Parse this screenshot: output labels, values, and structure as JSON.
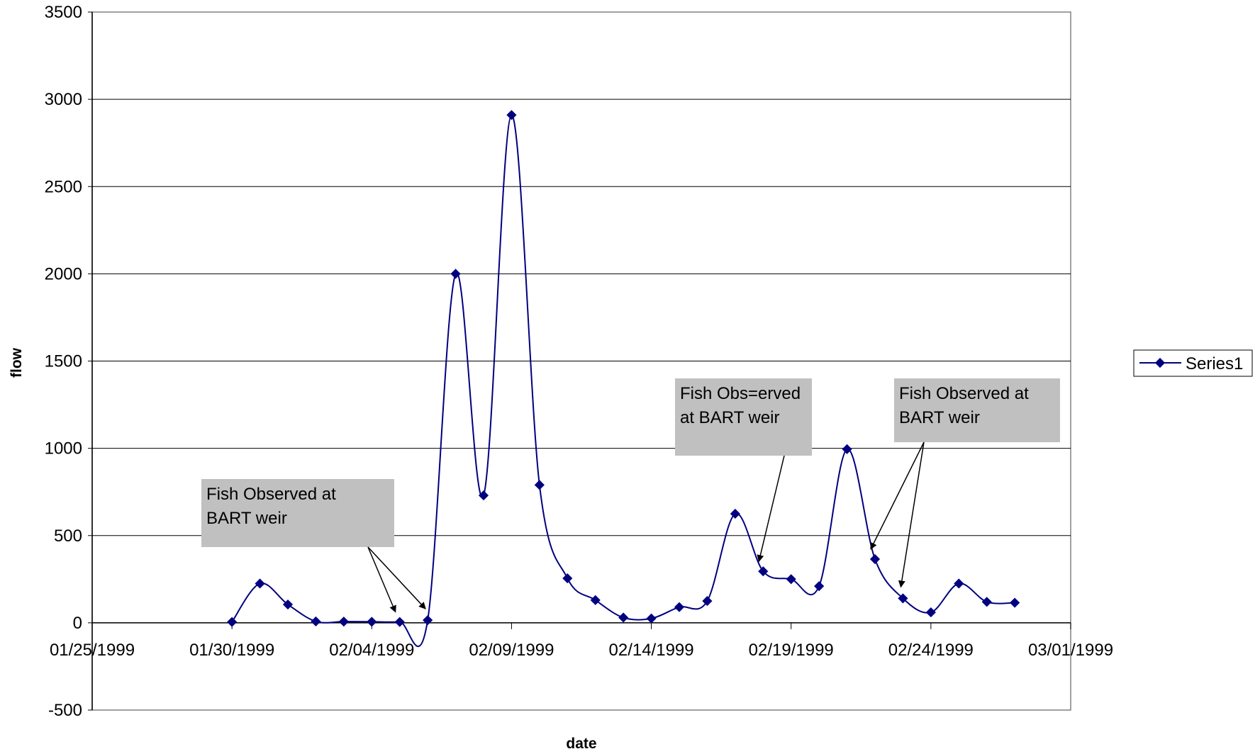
{
  "chart_data": {
    "type": "line",
    "title": "",
    "xlabel": "date",
    "ylabel": "flow",
    "x_type": "date",
    "xlim": [
      "1999-01-25",
      "1999-03-01"
    ],
    "ylim": [
      -500,
      3500
    ],
    "x_tick_labels": [
      "01/25/1999",
      "01/30/1999",
      "02/04/1999",
      "02/09/1999",
      "02/14/1999",
      "02/19/1999",
      "02/24/1999",
      "03/01/1999"
    ],
    "y_tick_labels": [
      "-500",
      "0",
      "500",
      "1000",
      "1500",
      "2000",
      "2500",
      "3000",
      "3500"
    ],
    "grid": "horizontal major",
    "smoothed": true,
    "marker": "diamond",
    "legend": "right",
    "series": [
      {
        "name": "Series1",
        "color": "#000080",
        "x": [
          "1999-01-30",
          "1999-01-31",
          "1999-02-01",
          "1999-02-02",
          "1999-02-03",
          "1999-02-04",
          "1999-02-05",
          "1999-02-06",
          "1999-02-07",
          "1999-02-08",
          "1999-02-09",
          "1999-02-10",
          "1999-02-11",
          "1999-02-12",
          "1999-02-13",
          "1999-02-14",
          "1999-02-15",
          "1999-02-16",
          "1999-02-17",
          "1999-02-18",
          "1999-02-19",
          "1999-02-20",
          "1999-02-21",
          "1999-02-22",
          "1999-02-23",
          "1999-02-24",
          "1999-02-25",
          "1999-02-26",
          "1999-02-27"
        ],
        "y": [
          5,
          225,
          105,
          8,
          7,
          6,
          5,
          15,
          2000,
          730,
          2910,
          790,
          255,
          130,
          30,
          25,
          90,
          125,
          625,
          295,
          250,
          210,
          995,
          365,
          140,
          60,
          225,
          120,
          115
        ]
      }
    ],
    "annotations": [
      {
        "text_lines": [
          "Fish Observed at",
          "BART weir"
        ],
        "arrow_targets": [
          "1999-02-05",
          "1999-02-06"
        ]
      },
      {
        "text_lines": [
          "Fish Obs=erved",
          "at BART weir"
        ],
        "arrow_targets": [
          "1999-02-18"
        ]
      },
      {
        "text_lines": [
          "Fish Observed at",
          "BART weir"
        ],
        "arrow_targets": [
          "1999-02-22",
          "1999-02-23"
        ]
      }
    ]
  }
}
